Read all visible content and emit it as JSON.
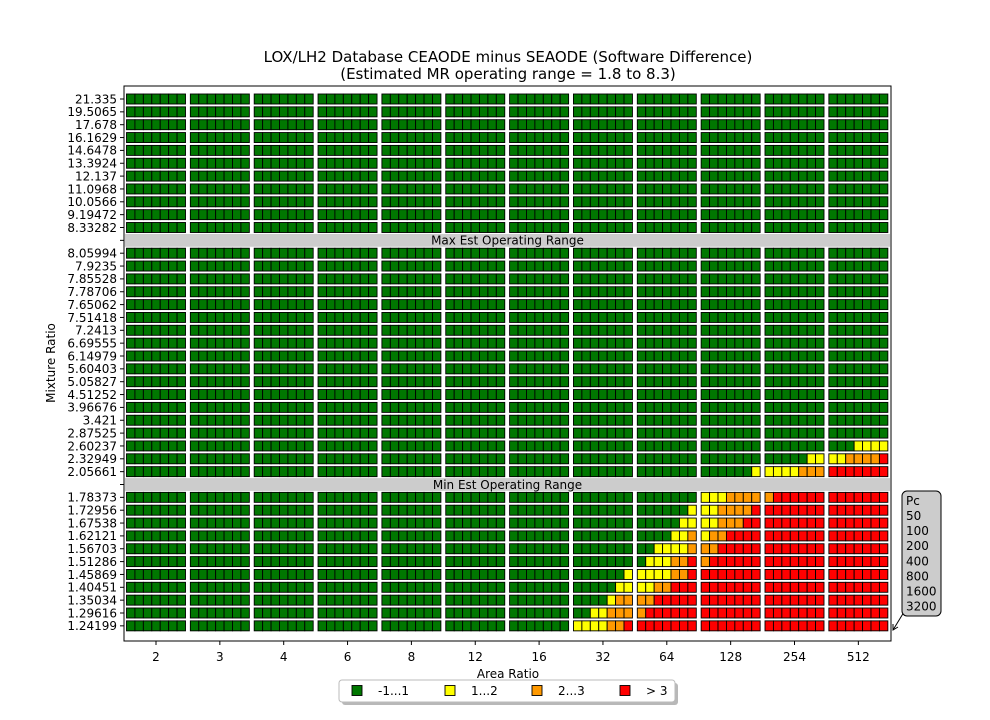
{
  "chart_data": {
    "type": "heatmap",
    "title": "LOX/LH2 Database CEAODE minus SEAODE (Software Difference)",
    "subtitle": "(Estimated MR operating range = 1.8 to 8.3)",
    "xlabel": "Area Ratio",
    "ylabel": "Mixture Ratio",
    "area_ratios": [
      "2",
      "3",
      "4",
      "6",
      "8",
      "12",
      "16",
      "32",
      "64",
      "128",
      "254",
      "512"
    ],
    "pc_values": [
      "50",
      "100",
      "200",
      "400",
      "800",
      "1600",
      "3200"
    ],
    "pc_title": "Pc",
    "bands": [
      "Max Est Operating Range",
      "Min Est Operating Range"
    ],
    "legend": [
      {
        "label": "-1...1",
        "color": "#007700"
      },
      {
        "label": "1...2",
        "color": "#ffff00"
      },
      {
        "label": "2...3",
        "color": "#ff9900"
      },
      {
        "label": "> 3",
        "color": "#ff0000"
      }
    ],
    "colors": {
      "c0": "#007700",
      "c1": "#ffff00",
      "c2": "#ff9900",
      "c3": "#ff0000",
      "band": "#cccccc"
    },
    "rows": [
      {
        "mr": "21.335",
        "cells": [
          "0000000",
          "0000000",
          "0000000",
          "0000000",
          "0000000",
          "0000000",
          "0000000",
          "0000000",
          "0000000",
          "0000000",
          "0000000",
          "0000000"
        ]
      },
      {
        "mr": "19.5065",
        "cells": [
          "0000000",
          "0000000",
          "0000000",
          "0000000",
          "0000000",
          "0000000",
          "0000000",
          "0000000",
          "0000000",
          "0000000",
          "0000000",
          "0000000"
        ]
      },
      {
        "mr": "17.678",
        "cells": [
          "0000000",
          "0000000",
          "0000000",
          "0000000",
          "0000000",
          "0000000",
          "0000000",
          "0000000",
          "0000000",
          "0000000",
          "0000000",
          "0000000"
        ]
      },
      {
        "mr": "16.1629",
        "cells": [
          "0000000",
          "0000000",
          "0000000",
          "0000000",
          "0000000",
          "0000000",
          "0000000",
          "0000000",
          "0000000",
          "0000000",
          "0000000",
          "0000000"
        ]
      },
      {
        "mr": "14.6478",
        "cells": [
          "0000000",
          "0000000",
          "0000000",
          "0000000",
          "0000000",
          "0000000",
          "0000000",
          "0000000",
          "0000000",
          "0000000",
          "0000000",
          "0000000"
        ]
      },
      {
        "mr": "13.3924",
        "cells": [
          "0000000",
          "0000000",
          "0000000",
          "0000000",
          "0000000",
          "0000000",
          "0000000",
          "0000000",
          "0000000",
          "0000000",
          "0000000",
          "0000000"
        ]
      },
      {
        "mr": "12.137",
        "cells": [
          "0000000",
          "0000000",
          "0000000",
          "0000000",
          "0000000",
          "0000000",
          "0000000",
          "0000000",
          "0000000",
          "0000000",
          "0000000",
          "0000000"
        ]
      },
      {
        "mr": "11.0968",
        "cells": [
          "0000000",
          "0000000",
          "0000000",
          "0000000",
          "0000000",
          "0000000",
          "0000000",
          "0000000",
          "0000000",
          "0000000",
          "0000000",
          "0000000"
        ]
      },
      {
        "mr": "10.0566",
        "cells": [
          "0000000",
          "0000000",
          "0000000",
          "0000000",
          "0000000",
          "0000000",
          "0000000",
          "0000000",
          "0000000",
          "0000000",
          "0000000",
          "0000000"
        ]
      },
      {
        "mr": "9.19472",
        "cells": [
          "0000000",
          "0000000",
          "0000000",
          "0000000",
          "0000000",
          "0000000",
          "0000000",
          "0000000",
          "0000000",
          "0000000",
          "0000000",
          "0000000"
        ]
      },
      {
        "mr": "8.33282",
        "cells": [
          "0000000",
          "0000000",
          "0000000",
          "0000000",
          "0000000",
          "0000000",
          "0000000",
          "0000000",
          "0000000",
          "0000000",
          "0000000",
          "0000000"
        ]
      },
      {
        "band": "Max Est Operating Range"
      },
      {
        "mr": "8.05994",
        "cells": [
          "0000000",
          "0000000",
          "0000000",
          "0000000",
          "0000000",
          "0000000",
          "0000000",
          "0000000",
          "0000000",
          "0000000",
          "0000000",
          "0000000"
        ]
      },
      {
        "mr": "7.9235",
        "cells": [
          "0000000",
          "0000000",
          "0000000",
          "0000000",
          "0000000",
          "0000000",
          "0000000",
          "0000000",
          "0000000",
          "0000000",
          "0000000",
          "0000000"
        ]
      },
      {
        "mr": "7.85528",
        "cells": [
          "0000000",
          "0000000",
          "0000000",
          "0000000",
          "0000000",
          "0000000",
          "0000000",
          "0000000",
          "0000000",
          "0000000",
          "0000000",
          "0000000"
        ]
      },
      {
        "mr": "7.78706",
        "cells": [
          "0000000",
          "0000000",
          "0000000",
          "0000000",
          "0000000",
          "0000000",
          "0000000",
          "0000000",
          "0000000",
          "0000000",
          "0000000",
          "0000000"
        ]
      },
      {
        "mr": "7.65062",
        "cells": [
          "0000000",
          "0000000",
          "0000000",
          "0000000",
          "0000000",
          "0000000",
          "0000000",
          "0000000",
          "0000000",
          "0000000",
          "0000000",
          "0000000"
        ]
      },
      {
        "mr": "7.51418",
        "cells": [
          "0000000",
          "0000000",
          "0000000",
          "0000000",
          "0000000",
          "0000000",
          "0000000",
          "0000000",
          "0000000",
          "0000000",
          "0000000",
          "0000000"
        ]
      },
      {
        "mr": "7.2413",
        "cells": [
          "0000000",
          "0000000",
          "0000000",
          "0000000",
          "0000000",
          "0000000",
          "0000000",
          "0000000",
          "0000000",
          "0000000",
          "0000000",
          "0000000"
        ]
      },
      {
        "mr": "6.69555",
        "cells": [
          "0000000",
          "0000000",
          "0000000",
          "0000000",
          "0000000",
          "0000000",
          "0000000",
          "0000000",
          "0000000",
          "0000000",
          "0000000",
          "0000000"
        ]
      },
      {
        "mr": "6.14979",
        "cells": [
          "0000000",
          "0000000",
          "0000000",
          "0000000",
          "0000000",
          "0000000",
          "0000000",
          "0000000",
          "0000000",
          "0000000",
          "0000000",
          "0000000"
        ]
      },
      {
        "mr": "5.60403",
        "cells": [
          "0000000",
          "0000000",
          "0000000",
          "0000000",
          "0000000",
          "0000000",
          "0000000",
          "0000000",
          "0000000",
          "0000000",
          "0000000",
          "0000000"
        ]
      },
      {
        "mr": "5.05827",
        "cells": [
          "0000000",
          "0000000",
          "0000000",
          "0000000",
          "0000000",
          "0000000",
          "0000000",
          "0000000",
          "0000000",
          "0000000",
          "0000000",
          "0000000"
        ]
      },
      {
        "mr": "4.51252",
        "cells": [
          "0000000",
          "0000000",
          "0000000",
          "0000000",
          "0000000",
          "0000000",
          "0000000",
          "0000000",
          "0000000",
          "0000000",
          "0000000",
          "0000000"
        ]
      },
      {
        "mr": "3.96676",
        "cells": [
          "0000000",
          "0000000",
          "0000000",
          "0000000",
          "0000000",
          "0000000",
          "0000000",
          "0000000",
          "0000000",
          "0000000",
          "0000000",
          "0000000"
        ]
      },
      {
        "mr": "3.421",
        "cells": [
          "0000000",
          "0000000",
          "0000000",
          "0000000",
          "0000000",
          "0000000",
          "0000000",
          "0000000",
          "0000000",
          "0000000",
          "0000000",
          "0000000"
        ]
      },
      {
        "mr": "2.87525",
        "cells": [
          "0000000",
          "0000000",
          "0000000",
          "0000000",
          "0000000",
          "0000000",
          "0000000",
          "0000000",
          "0000000",
          "0000000",
          "0000000",
          "0000000"
        ]
      },
      {
        "mr": "2.60237",
        "cells": [
          "0000000",
          "0000000",
          "0000000",
          "0000000",
          "0000000",
          "0000000",
          "0000000",
          "0000000",
          "0000000",
          "0000000",
          "0000000",
          "0001111"
        ]
      },
      {
        "mr": "2.32949",
        "cells": [
          "0000000",
          "0000000",
          "0000000",
          "0000000",
          "0000000",
          "0000000",
          "0000000",
          "0000000",
          "0000000",
          "0000000",
          "0000011",
          "1122223"
        ]
      },
      {
        "mr": "2.05661",
        "cells": [
          "0000000",
          "0000000",
          "0000000",
          "0000000",
          "0000000",
          "0000000",
          "0000000",
          "0000000",
          "0000000",
          "0000001",
          "1111222",
          "3333333"
        ]
      },
      {
        "band": "Min Est Operating Range"
      },
      {
        "mr": "1.78373",
        "cells": [
          "0000000",
          "0000000",
          "0000000",
          "0000000",
          "0000000",
          "0000000",
          "0000000",
          "0000000",
          "0000000",
          "1112222",
          "2333333",
          "3333333"
        ]
      },
      {
        "mr": "1.72956",
        "cells": [
          "0000000",
          "0000000",
          "0000000",
          "0000000",
          "0000000",
          "0000000",
          "0000000",
          "0000000",
          "0000001",
          "1122223",
          "3333333",
          "3333333"
        ]
      },
      {
        "mr": "1.67538",
        "cells": [
          "0000000",
          "0000000",
          "0000000",
          "0000000",
          "0000000",
          "0000000",
          "0000000",
          "0000000",
          "0000011",
          "1122233",
          "3333333",
          "3333333"
        ]
      },
      {
        "mr": "1.62121",
        "cells": [
          "0000000",
          "0000000",
          "0000000",
          "0000000",
          "0000000",
          "0000000",
          "0000000",
          "0000000",
          "0000112",
          "1223333",
          "3333333",
          "3333333"
        ]
      },
      {
        "mr": "1.56703",
        "cells": [
          "0000000",
          "0000000",
          "0000000",
          "0000000",
          "0000000",
          "0000000",
          "0000000",
          "0000000",
          "0011112",
          "2233333",
          "3333333",
          "3333333"
        ]
      },
      {
        "mr": "1.51286",
        "cells": [
          "0000000",
          "0000000",
          "0000000",
          "0000000",
          "0000000",
          "0000000",
          "0000000",
          "0000000",
          "0111223",
          "2333333",
          "3333333",
          "3333333"
        ]
      },
      {
        "mr": "1.45869",
        "cells": [
          "0000000",
          "0000000",
          "0000000",
          "0000000",
          "0000000",
          "0000000",
          "0000000",
          "0000001",
          "1111223",
          "3333333",
          "3333333",
          "3333333"
        ]
      },
      {
        "mr": "1.40451",
        "cells": [
          "0000000",
          "0000000",
          "0000000",
          "0000000",
          "0000000",
          "0000000",
          "0000000",
          "0000011",
          "1122333",
          "3333333",
          "3333333",
          "3333333"
        ]
      },
      {
        "mr": "1.35034",
        "cells": [
          "0000000",
          "0000000",
          "0000000",
          "0000000",
          "0000000",
          "0000000",
          "0000000",
          "0000122",
          "2233333",
          "3333333",
          "3333333",
          "3333333"
        ]
      },
      {
        "mr": "1.29616",
        "cells": [
          "0000000",
          "0000000",
          "0000000",
          "0000000",
          "0000000",
          "0000000",
          "0000000",
          "0011222",
          "2333333",
          "3333333",
          "3333333",
          "3333333"
        ]
      },
      {
        "mr": "1.24199",
        "cells": [
          "0000000",
          "0000000",
          "0000000",
          "0000000",
          "0000000",
          "0000000",
          "0000000",
          "1111223",
          "3333333",
          "3333333",
          "3333333",
          "3333333"
        ]
      }
    ]
  }
}
